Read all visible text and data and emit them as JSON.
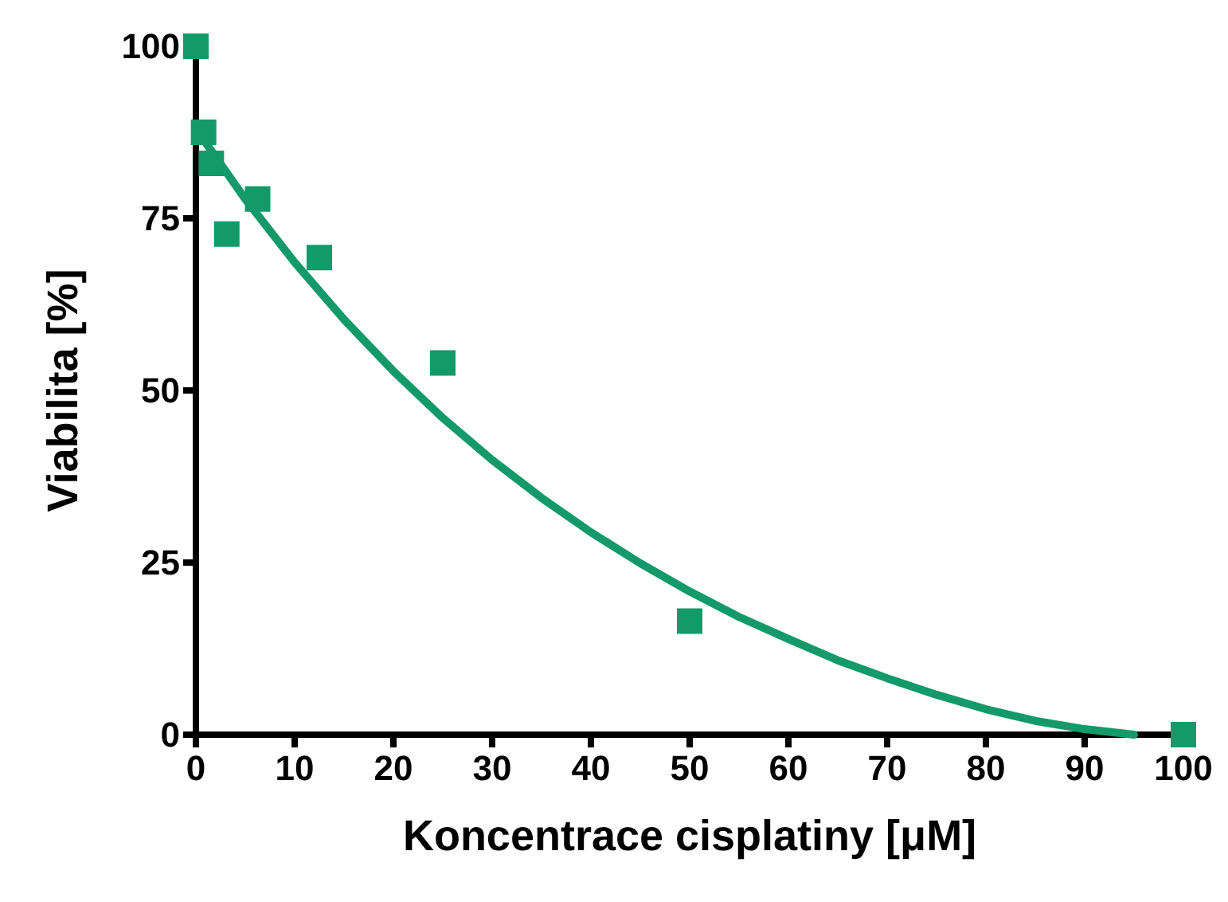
{
  "chart_data": {
    "type": "scatter",
    "xlabel": "Koncentrace cisplatiny [μM]",
    "ylabel": "Viabilita [%]",
    "xlim": [
      0,
      100
    ],
    "xticks": [
      0,
      10,
      20,
      30,
      40,
      50,
      60,
      70,
      80,
      90,
      100
    ],
    "ylim": [
      0,
      100
    ],
    "yticks": [
      0,
      25,
      50,
      75,
      100
    ],
    "grid": false,
    "marker": "square",
    "series": [
      {
        "color": "#13996a",
        "x": [
          0,
          0.78,
          1.56,
          3.125,
          6.25,
          12.5,
          25,
          50,
          100
        ],
        "values": [
          100,
          87.5,
          83,
          72.7,
          77.8,
          69.3,
          54,
          16.5,
          0
        ]
      },
      {
        "type": "line",
        "color": "#13996a",
        "marker": "none",
        "line_style": "solid",
        "x": [
          0,
          5,
          10,
          15,
          20,
          25,
          30,
          35,
          40,
          45,
          50,
          55,
          60,
          65,
          70,
          75,
          80,
          85,
          90,
          95
        ],
        "values": [
          88,
          77.8,
          68.6,
          60.3,
          52.8,
          46,
          39.9,
          34.4,
          29.4,
          24.9,
          20.8,
          17.1,
          13.9,
          10.8,
          8.2,
          5.8,
          3.7,
          2,
          0.8,
          0
        ]
      }
    ]
  }
}
